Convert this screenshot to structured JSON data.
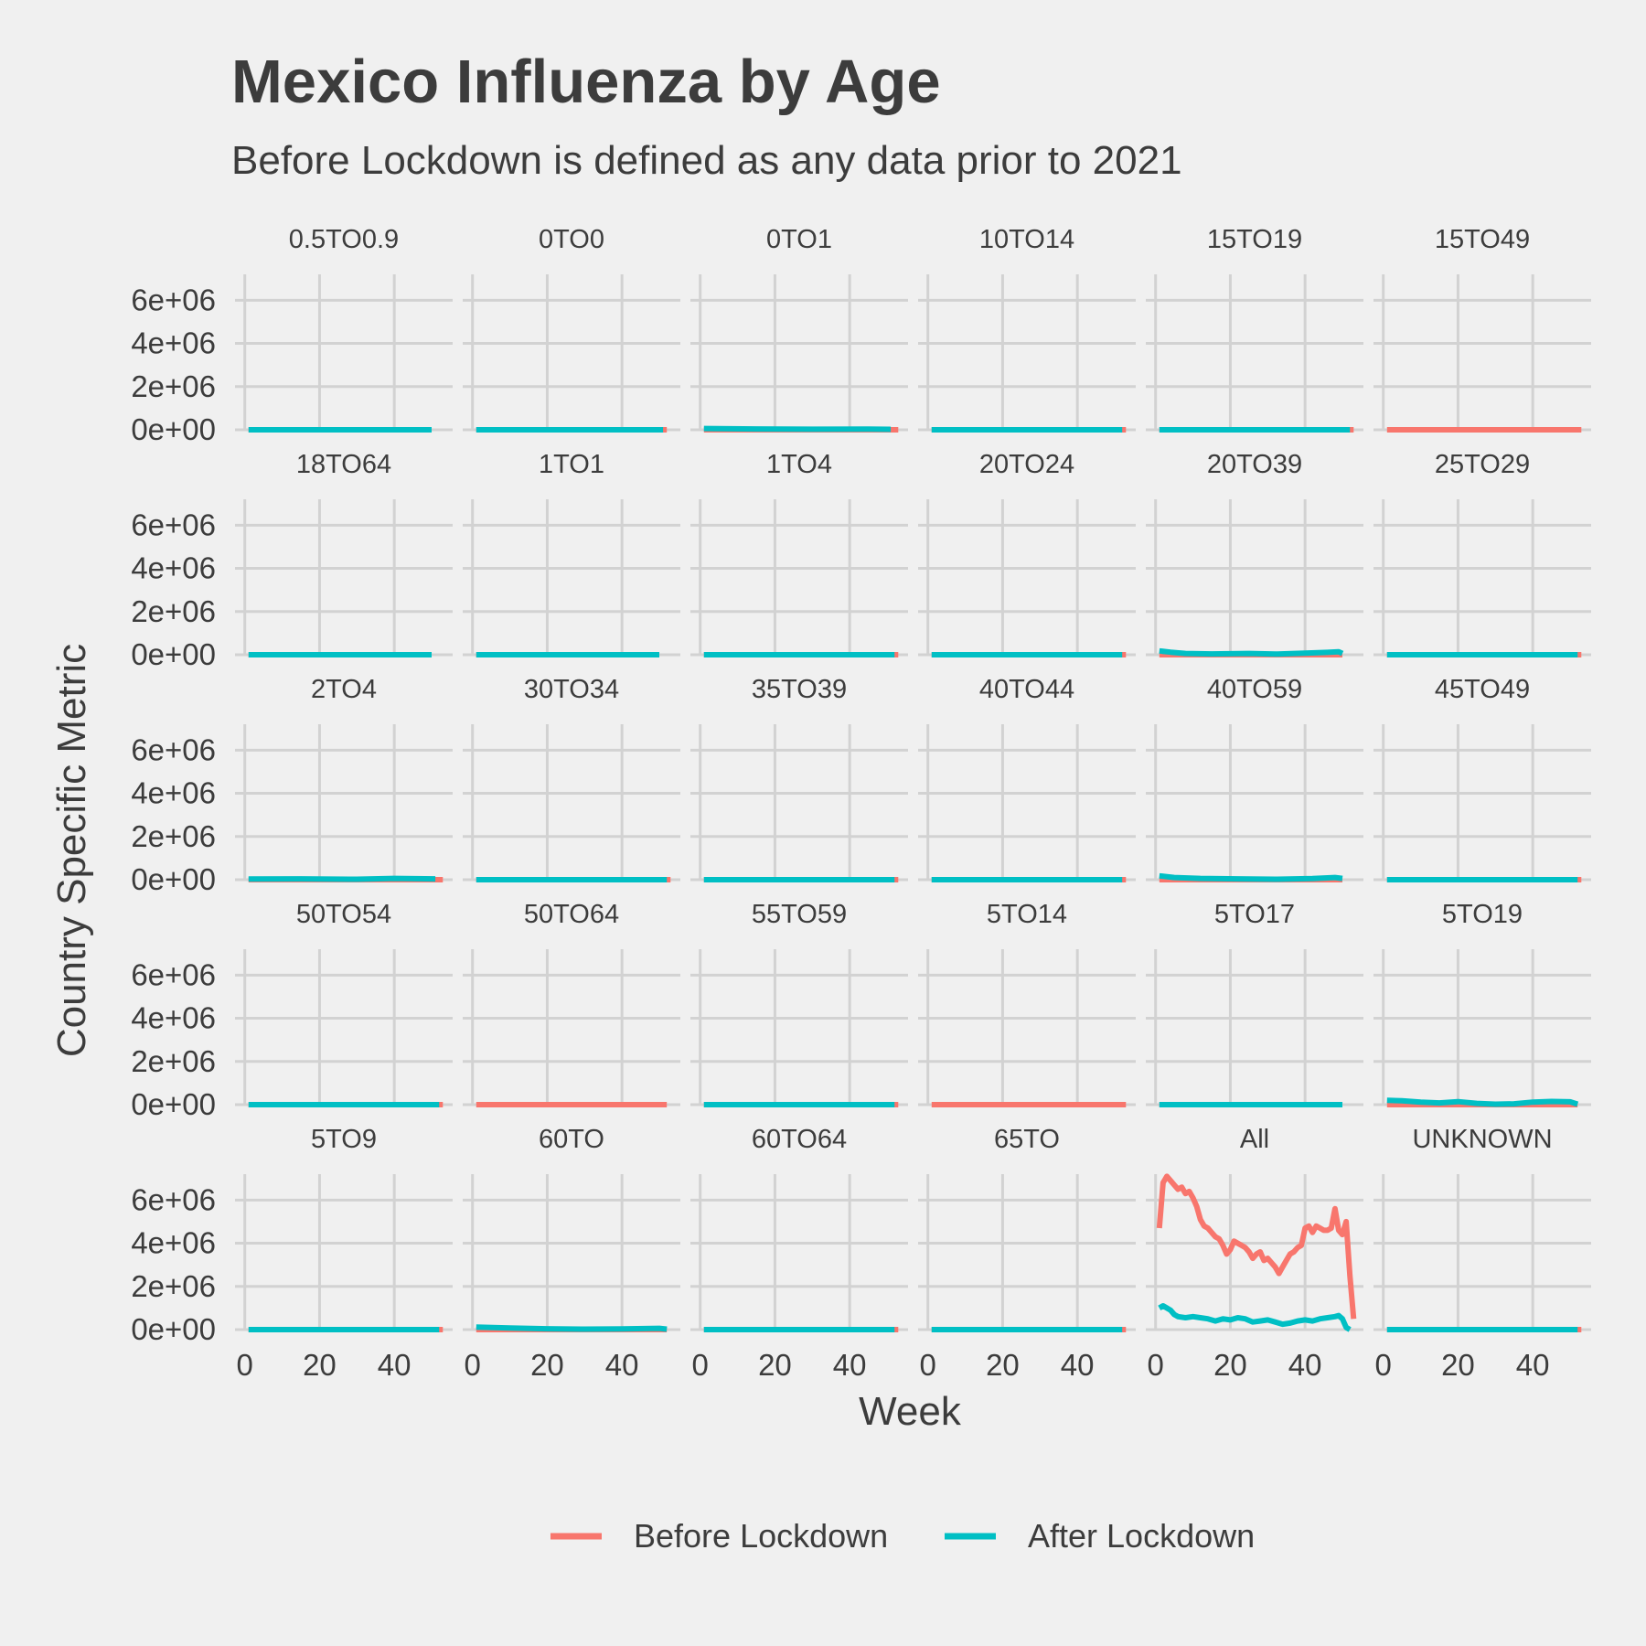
{
  "title": "Mexico Influenza by Age",
  "subtitle": "Before Lockdown is defined as any data prior to 2021",
  "colors": {
    "background": "#f0f0f0",
    "grid": "#d2d2d2",
    "text": "#3c3c3c",
    "before": "#f8766d",
    "after": "#00bfc4"
  },
  "chart_data": {
    "type": "line",
    "facet_layout": "6 columns x 5 rows, shared axes",
    "xlabel": "Week",
    "ylabel": "Country Specific Metric",
    "xlim": [
      0,
      53
    ],
    "ylim": [
      0,
      7200000
    ],
    "x_ticks": [
      0,
      20,
      40
    ],
    "y_ticks": [
      0,
      2000000,
      4000000,
      6000000
    ],
    "y_tick_labels": [
      "0e+00",
      "2e+06",
      "4e+06",
      "6e+06"
    ],
    "x_tick_labels": [
      "0",
      "20",
      "40"
    ],
    "grid": true,
    "legend_position": "bottom",
    "legend": [
      {
        "key": "before",
        "label": "Before Lockdown"
      },
      {
        "key": "after",
        "label": "After Lockdown"
      }
    ],
    "panels": [
      {
        "label": "0.5TO0.9",
        "before": [
          [
            1,
            0
          ],
          [
            50,
            0
          ]
        ],
        "after": [
          [
            1,
            0
          ],
          [
            50,
            0
          ]
        ]
      },
      {
        "label": "0TO0",
        "before": [
          [
            1,
            0
          ],
          [
            52,
            0
          ]
        ],
        "after": [
          [
            1,
            0
          ],
          [
            51,
            0
          ]
        ]
      },
      {
        "label": "0TO1",
        "before": [
          [
            1,
            0
          ],
          [
            53,
            0
          ]
        ],
        "after": [
          [
            1,
            60000
          ],
          [
            15,
            40000
          ],
          [
            30,
            25000
          ],
          [
            45,
            30000
          ],
          [
            51,
            20000
          ]
        ]
      },
      {
        "label": "10TO14",
        "before": [
          [
            1,
            0
          ],
          [
            53,
            0
          ]
        ],
        "after": [
          [
            1,
            0
          ],
          [
            52,
            0
          ]
        ]
      },
      {
        "label": "15TO19",
        "before": [
          [
            1,
            0
          ],
          [
            53,
            0
          ]
        ],
        "after": [
          [
            1,
            0
          ],
          [
            52,
            0
          ]
        ]
      },
      {
        "label": "15TO49",
        "before": [
          [
            1,
            0
          ],
          [
            53,
            0
          ]
        ],
        "after": []
      },
      {
        "label": "18TO64",
        "before": [
          [
            1,
            0
          ],
          [
            50,
            0
          ]
        ],
        "after": [
          [
            1,
            0
          ],
          [
            50,
            0
          ]
        ]
      },
      {
        "label": "1TO1",
        "before": [
          [
            1,
            0
          ],
          [
            50,
            0
          ]
        ],
        "after": [
          [
            1,
            0
          ],
          [
            50,
            0
          ]
        ]
      },
      {
        "label": "1TO4",
        "before": [
          [
            1,
            0
          ],
          [
            53,
            0
          ]
        ],
        "after": [
          [
            1,
            0
          ],
          [
            52,
            0
          ]
        ]
      },
      {
        "label": "20TO24",
        "before": [
          [
            1,
            0
          ],
          [
            53,
            0
          ]
        ],
        "after": [
          [
            1,
            0
          ],
          [
            52,
            0
          ]
        ]
      },
      {
        "label": "20TO39",
        "before": [
          [
            1,
            0
          ],
          [
            50,
            0
          ]
        ],
        "after": [
          [
            1,
            180000
          ],
          [
            4,
            120000
          ],
          [
            8,
            60000
          ],
          [
            15,
            40000
          ],
          [
            25,
            60000
          ],
          [
            32,
            30000
          ],
          [
            40,
            70000
          ],
          [
            46,
            110000
          ],
          [
            49,
            140000
          ],
          [
            50,
            60000
          ]
        ]
      },
      {
        "label": "25TO29",
        "before": [
          [
            1,
            0
          ],
          [
            53,
            0
          ]
        ],
        "after": [
          [
            1,
            0
          ],
          [
            52,
            0
          ]
        ]
      },
      {
        "label": "2TO4",
        "before": [
          [
            1,
            0
          ],
          [
            53,
            0
          ]
        ],
        "after": [
          [
            1,
            30000
          ],
          [
            15,
            40000
          ],
          [
            30,
            20000
          ],
          [
            40,
            60000
          ],
          [
            51,
            40000
          ]
        ]
      },
      {
        "label": "30TO34",
        "before": [
          [
            1,
            0
          ],
          [
            53,
            0
          ]
        ],
        "after": [
          [
            1,
            0
          ],
          [
            52,
            0
          ]
        ]
      },
      {
        "label": "35TO39",
        "before": [
          [
            1,
            0
          ],
          [
            53,
            0
          ]
        ],
        "after": [
          [
            1,
            0
          ],
          [
            52,
            0
          ]
        ]
      },
      {
        "label": "40TO44",
        "before": [
          [
            1,
            0
          ],
          [
            53,
            0
          ]
        ],
        "after": [
          [
            1,
            0
          ],
          [
            52,
            0
          ]
        ]
      },
      {
        "label": "40TO59",
        "before": [
          [
            1,
            0
          ],
          [
            50,
            0
          ]
        ],
        "after": [
          [
            1,
            180000
          ],
          [
            5,
            100000
          ],
          [
            12,
            60000
          ],
          [
            22,
            40000
          ],
          [
            32,
            20000
          ],
          [
            42,
            50000
          ],
          [
            48,
            100000
          ],
          [
            50,
            60000
          ]
        ]
      },
      {
        "label": "45TO49",
        "before": [
          [
            1,
            0
          ],
          [
            53,
            0
          ]
        ],
        "after": [
          [
            1,
            0
          ],
          [
            52,
            0
          ]
        ]
      },
      {
        "label": "50TO54",
        "before": [
          [
            1,
            0
          ],
          [
            53,
            0
          ]
        ],
        "after": [
          [
            1,
            0
          ],
          [
            52,
            0
          ]
        ]
      },
      {
        "label": "50TO64",
        "before": [
          [
            1,
            0
          ],
          [
            52,
            0
          ]
        ],
        "after": []
      },
      {
        "label": "55TO59",
        "before": [
          [
            1,
            0
          ],
          [
            53,
            0
          ]
        ],
        "after": [
          [
            1,
            0
          ],
          [
            52,
            0
          ]
        ]
      },
      {
        "label": "5TO14",
        "before": [
          [
            1,
            0
          ],
          [
            53,
            0
          ]
        ],
        "after": []
      },
      {
        "label": "5TO17",
        "before": [
          [
            1,
            0
          ],
          [
            50,
            0
          ]
        ],
        "after": [
          [
            1,
            0
          ],
          [
            50,
            0
          ]
        ]
      },
      {
        "label": "5TO19",
        "before": [
          [
            1,
            0
          ],
          [
            52,
            0
          ]
        ],
        "after": [
          [
            1,
            200000
          ],
          [
            5,
            180000
          ],
          [
            10,
            120000
          ],
          [
            15,
            80000
          ],
          [
            20,
            140000
          ],
          [
            25,
            60000
          ],
          [
            30,
            20000
          ],
          [
            35,
            40000
          ],
          [
            40,
            120000
          ],
          [
            45,
            150000
          ],
          [
            50,
            130000
          ],
          [
            52,
            20000
          ]
        ]
      },
      {
        "label": "5TO9",
        "before": [
          [
            1,
            0
          ],
          [
            53,
            0
          ]
        ],
        "after": [
          [
            1,
            0
          ],
          [
            52,
            0
          ]
        ]
      },
      {
        "label": "60TO",
        "before": [
          [
            1,
            0
          ],
          [
            52,
            0
          ]
        ],
        "after": [
          [
            1,
            120000
          ],
          [
            10,
            70000
          ],
          [
            20,
            40000
          ],
          [
            30,
            20000
          ],
          [
            40,
            30000
          ],
          [
            50,
            60000
          ],
          [
            52,
            20000
          ]
        ]
      },
      {
        "label": "60TO64",
        "before": [
          [
            1,
            0
          ],
          [
            53,
            0
          ]
        ],
        "after": [
          [
            1,
            0
          ],
          [
            52,
            0
          ]
        ]
      },
      {
        "label": "65TO",
        "before": [
          [
            1,
            0
          ],
          [
            53,
            0
          ]
        ],
        "after": [
          [
            1,
            0
          ],
          [
            52,
            0
          ]
        ]
      },
      {
        "label": "All",
        "before": [
          [
            1,
            4700000
          ],
          [
            2,
            6800000
          ],
          [
            3,
            7100000
          ],
          [
            4,
            6900000
          ],
          [
            5,
            6700000
          ],
          [
            6,
            6500000
          ],
          [
            7,
            6600000
          ],
          [
            8,
            6300000
          ],
          [
            9,
            6400000
          ],
          [
            10,
            6100000
          ],
          [
            11,
            5700000
          ],
          [
            12,
            5100000
          ],
          [
            13,
            4800000
          ],
          [
            14,
            4700000
          ],
          [
            15,
            4500000
          ],
          [
            16,
            4300000
          ],
          [
            17,
            4200000
          ],
          [
            18,
            3900000
          ],
          [
            19,
            3500000
          ],
          [
            20,
            3700000
          ],
          [
            21,
            4100000
          ],
          [
            22,
            4000000
          ],
          [
            23,
            3900000
          ],
          [
            24,
            3800000
          ],
          [
            25,
            3600000
          ],
          [
            26,
            3300000
          ],
          [
            27,
            3500000
          ],
          [
            28,
            3600000
          ],
          [
            29,
            3200000
          ],
          [
            30,
            3300000
          ],
          [
            31,
            3100000
          ],
          [
            32,
            2900000
          ],
          [
            33,
            2600000
          ],
          [
            34,
            2900000
          ],
          [
            35,
            3200000
          ],
          [
            36,
            3500000
          ],
          [
            37,
            3600000
          ],
          [
            38,
            3800000
          ],
          [
            39,
            3900000
          ],
          [
            40,
            4700000
          ],
          [
            41,
            4800000
          ],
          [
            42,
            4500000
          ],
          [
            43,
            4800000
          ],
          [
            44,
            4700000
          ],
          [
            45,
            4600000
          ],
          [
            46,
            4600000
          ],
          [
            47,
            4700000
          ],
          [
            48,
            5600000
          ],
          [
            49,
            4600000
          ],
          [
            50,
            4400000
          ],
          [
            51,
            5000000
          ],
          [
            52,
            2500000
          ],
          [
            53,
            500000
          ]
        ],
        "after": [
          [
            1,
            1000000
          ],
          [
            2,
            1100000
          ],
          [
            3,
            1000000
          ],
          [
            4,
            900000
          ],
          [
            5,
            700000
          ],
          [
            6,
            600000
          ],
          [
            8,
            550000
          ],
          [
            10,
            600000
          ],
          [
            12,
            550000
          ],
          [
            14,
            500000
          ],
          [
            16,
            400000
          ],
          [
            18,
            500000
          ],
          [
            20,
            450000
          ],
          [
            22,
            550000
          ],
          [
            24,
            500000
          ],
          [
            26,
            350000
          ],
          [
            28,
            400000
          ],
          [
            30,
            450000
          ],
          [
            32,
            350000
          ],
          [
            34,
            250000
          ],
          [
            36,
            300000
          ],
          [
            38,
            400000
          ],
          [
            40,
            450000
          ],
          [
            42,
            400000
          ],
          [
            44,
            500000
          ],
          [
            46,
            550000
          ],
          [
            48,
            600000
          ],
          [
            49,
            650000
          ],
          [
            50,
            500000
          ],
          [
            51,
            100000
          ],
          [
            52,
            0
          ]
        ]
      },
      {
        "label": "UNKNOWN",
        "before": [
          [
            1,
            0
          ],
          [
            53,
            0
          ]
        ],
        "after": [
          [
            1,
            0
          ],
          [
            52,
            0
          ]
        ]
      }
    ]
  }
}
